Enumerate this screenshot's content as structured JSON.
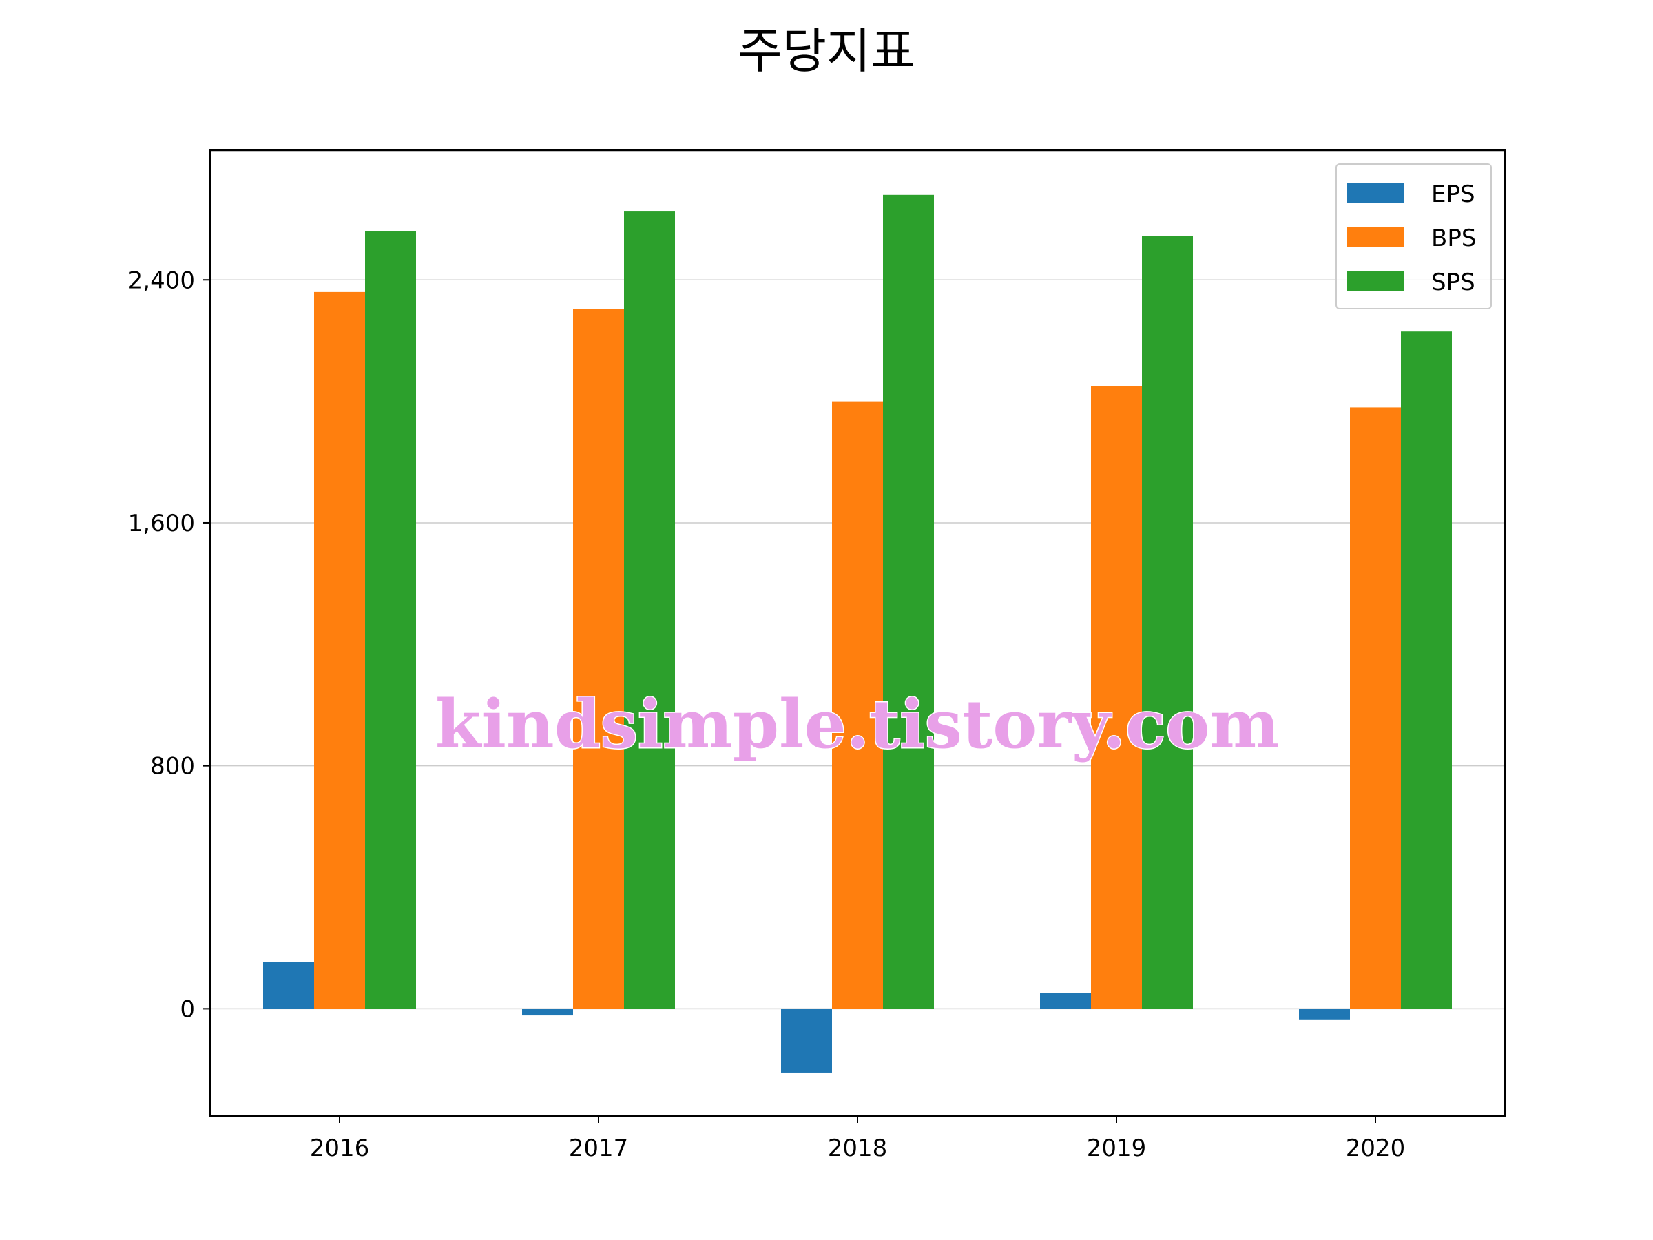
{
  "chart_data": {
    "type": "bar",
    "title": "주당지표",
    "xlabel": "",
    "ylabel": "",
    "categories": [
      "2016",
      "2017",
      "2018",
      "2019",
      "2020"
    ],
    "series": [
      {
        "name": "EPS",
        "color": "#1f77b4",
        "values": [
          155,
          -22,
          -210,
          52,
          -35
        ]
      },
      {
        "name": "BPS",
        "color": "#ff7f0e",
        "values": [
          2360,
          2305,
          2000,
          2050,
          1980
        ]
      },
      {
        "name": "SPS",
        "color": "#2ca02c",
        "values": [
          2560,
          2625,
          2680,
          2545,
          2230
        ]
      }
    ],
    "yticks": [
      0,
      800,
      1600,
      2400
    ],
    "ytick_labels": [
      "0",
      "800",
      "1,600",
      "2,400"
    ],
    "ylim": [
      -353,
      2827
    ],
    "grid": "horizontal",
    "legend_position": "top-right"
  },
  "watermark": "kindsimple.tistory.com"
}
